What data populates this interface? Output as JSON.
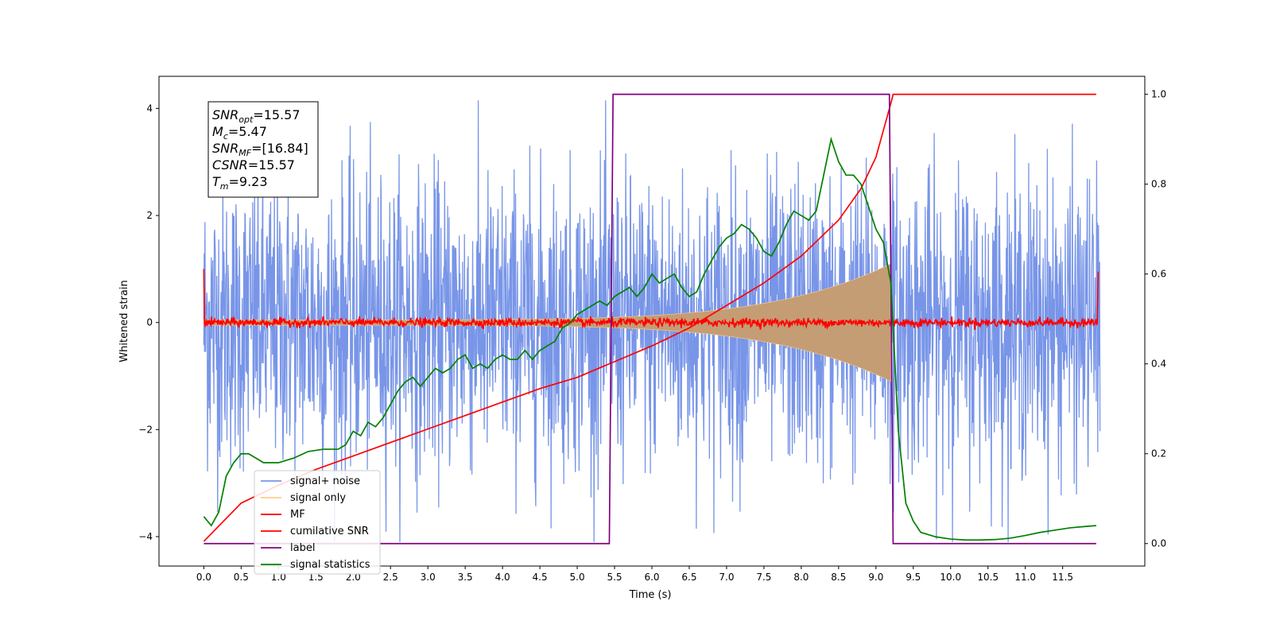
{
  "chart_data": {
    "type": "line",
    "xlabel": "Time (s)",
    "ylabel": "Whitened strain",
    "xlim": [
      -0.6,
      12.6
    ],
    "ylim": [
      -4.55,
      4.6
    ],
    "y2lim": [
      -0.05,
      1.04
    ],
    "xticks": [
      "0.0",
      "0.5",
      "1.0",
      "1.5",
      "2.0",
      "2.5",
      "3.0",
      "3.5",
      "4.0",
      "4.5",
      "5.0",
      "5.5",
      "6.0",
      "6.5",
      "7.0",
      "7.5",
      "8.0",
      "8.5",
      "9.0",
      "9.5",
      "10.0",
      "10.5",
      "11.0",
      "11.5"
    ],
    "xtick_values": [
      0,
      0.5,
      1,
      1.5,
      2,
      2.5,
      3,
      3.5,
      4,
      4.5,
      5,
      5.5,
      6,
      6.5,
      7,
      7.5,
      8,
      8.5,
      9,
      9.5,
      10,
      10.5,
      11,
      11.5
    ],
    "yticks": [
      "4",
      "2",
      "0",
      "−2",
      "−4"
    ],
    "ytick_values": [
      4,
      2,
      0,
      -2,
      -4
    ],
    "y2ticks": [
      "1.0",
      "0.8",
      "0.6",
      "0.4",
      "0.2",
      "0.0"
    ],
    "y2tick_values": [
      1.0,
      0.8,
      0.6,
      0.4,
      0.2,
      0.0
    ],
    "annotations": [
      {
        "sym": "SNR",
        "sub": "opt",
        "val": "=15.57"
      },
      {
        "sym": "M",
        "sub": "c",
        "val": "=5.47"
      },
      {
        "sym": "SNR",
        "sub": "MF",
        "val": "=[16.84]"
      },
      {
        "sym": "CSNR",
        "sub": "",
        "val": "=15.57"
      },
      {
        "sym": "T",
        "sub": "m",
        "val": "=9.23"
      }
    ],
    "legend": {
      "placement": "lower-left",
      "entries": [
        {
          "label": "signal+ noise",
          "color": "#7895e8"
        },
        {
          "label": "signal only",
          "color": "#ffcc88"
        },
        {
          "label": "MF",
          "color": "#ff0000"
        },
        {
          "label": "cumilative SNR",
          "color": "#ff0000"
        },
        {
          "label": "label",
          "color": "#800080"
        },
        {
          "label": "signal statistics",
          "color": "#008000"
        }
      ]
    },
    "series": [
      {
        "name": "signal+ noise",
        "axis": "left",
        "color": "#7895e8",
        "duration": 12,
        "envelope_std": 1.35,
        "peak": 4.15,
        "trough": -4.1
      },
      {
        "name": "signal only",
        "axis": "left",
        "color": "#ffcc88",
        "start_amplitude": 0.05,
        "peak_amplitude": 1.1,
        "peak_time": 9.2
      },
      {
        "name": "MF",
        "axis": "left",
        "color": "#ff0000",
        "std": 0.04,
        "edge_values": [
          1.0,
          0.95
        ]
      },
      {
        "name": "cumilative SNR",
        "axis": "right",
        "x": [
          0,
          0.5,
          1,
          1.5,
          2,
          2.5,
          3,
          3.5,
          4,
          4.5,
          5,
          5.5,
          6,
          6.5,
          7,
          7.5,
          8,
          8.5,
          8.8,
          9.0,
          9.1,
          9.2,
          9.23,
          11.95
        ],
        "y": [
          0.005,
          0.09,
          0.13,
          0.165,
          0.195,
          0.225,
          0.255,
          0.285,
          0.315,
          0.345,
          0.37,
          0.405,
          0.44,
          0.48,
          0.53,
          0.58,
          0.64,
          0.72,
          0.79,
          0.86,
          0.92,
          0.98,
          1.0,
          1.0
        ],
        "color": "#ff0000"
      },
      {
        "name": "label",
        "axis": "right",
        "x": [
          0,
          5.43,
          5.48,
          9.18,
          9.23,
          11.95
        ],
        "y": [
          0,
          0,
          1,
          1,
          0,
          0
        ],
        "color": "#800080"
      },
      {
        "name": "signal statistics",
        "axis": "right",
        "x": [
          0,
          0.1,
          0.2,
          0.3,
          0.4,
          0.5,
          0.6,
          0.7,
          0.8,
          0.9,
          1.0,
          1.2,
          1.4,
          1.6,
          1.8,
          1.9,
          2.0,
          2.1,
          2.2,
          2.3,
          2.4,
          2.5,
          2.6,
          2.7,
          2.8,
          2.9,
          3.0,
          3.1,
          3.2,
          3.3,
          3.4,
          3.5,
          3.6,
          3.7,
          3.8,
          3.9,
          4.0,
          4.1,
          4.2,
          4.3,
          4.4,
          4.5,
          4.6,
          4.7,
          4.8,
          4.9,
          5.0,
          5.1,
          5.2,
          5.3,
          5.4,
          5.5,
          5.6,
          5.7,
          5.8,
          5.9,
          6.0,
          6.1,
          6.2,
          6.3,
          6.4,
          6.5,
          6.6,
          6.7,
          6.8,
          6.9,
          7.0,
          7.1,
          7.2,
          7.3,
          7.4,
          7.5,
          7.6,
          7.7,
          7.8,
          7.9,
          8.0,
          8.1,
          8.2,
          8.3,
          8.4,
          8.5,
          8.6,
          8.7,
          8.8,
          8.9,
          9.0,
          9.1,
          9.2,
          9.3,
          9.4,
          9.5,
          9.6,
          9.8,
          10.0,
          10.2,
          10.4,
          10.6,
          10.8,
          11.0,
          11.2,
          11.4,
          11.6,
          11.8,
          11.95
        ],
        "y": [
          0.06,
          0.04,
          0.07,
          0.15,
          0.18,
          0.2,
          0.2,
          0.19,
          0.18,
          0.18,
          0.18,
          0.19,
          0.205,
          0.21,
          0.21,
          0.22,
          0.25,
          0.24,
          0.27,
          0.26,
          0.28,
          0.31,
          0.34,
          0.36,
          0.37,
          0.35,
          0.37,
          0.39,
          0.38,
          0.39,
          0.41,
          0.42,
          0.39,
          0.4,
          0.39,
          0.41,
          0.42,
          0.41,
          0.41,
          0.43,
          0.41,
          0.43,
          0.44,
          0.45,
          0.48,
          0.49,
          0.51,
          0.52,
          0.53,
          0.54,
          0.53,
          0.55,
          0.56,
          0.57,
          0.55,
          0.57,
          0.6,
          0.58,
          0.59,
          0.6,
          0.57,
          0.55,
          0.56,
          0.6,
          0.63,
          0.66,
          0.68,
          0.69,
          0.71,
          0.7,
          0.68,
          0.65,
          0.64,
          0.67,
          0.71,
          0.74,
          0.73,
          0.72,
          0.74,
          0.82,
          0.9,
          0.85,
          0.82,
          0.82,
          0.8,
          0.75,
          0.7,
          0.67,
          0.58,
          0.25,
          0.09,
          0.05,
          0.025,
          0.015,
          0.01,
          0.008,
          0.008,
          0.009,
          0.012,
          0.018,
          0.025,
          0.03,
          0.035,
          0.038,
          0.04
        ],
        "color": "#008000"
      }
    ]
  }
}
